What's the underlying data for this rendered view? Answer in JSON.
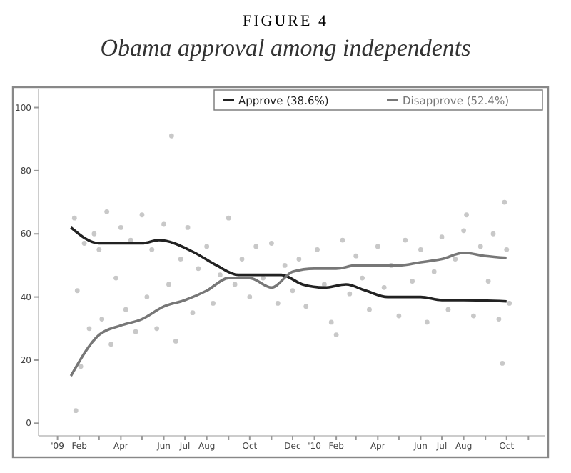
{
  "chart_data": {
    "type": "line",
    "title": "FIGURE 4",
    "subtitle": "Obama approval among independents",
    "xlim": [
      "2008-12-05",
      "2010-11-25"
    ],
    "xticks": [
      {
        "value": "2009-01-01",
        "label": "'09"
      },
      {
        "value": "2009-02-01",
        "label": "Feb"
      },
      {
        "value": "2009-03-01",
        "label": null
      },
      {
        "value": "2009-04-01",
        "label": "Apr"
      },
      {
        "value": "2009-05-01",
        "label": null
      },
      {
        "value": "2009-06-01",
        "label": "Jun"
      },
      {
        "value": "2009-07-01",
        "label": "Jul"
      },
      {
        "value": "2009-08-01",
        "label": "Aug"
      },
      {
        "value": "2009-09-01",
        "label": null
      },
      {
        "value": "2009-10-01",
        "label": "Oct"
      },
      {
        "value": "2009-11-01",
        "label": null
      },
      {
        "value": "2009-12-01",
        "label": "Dec"
      },
      {
        "value": "2010-01-01",
        "label": "'10"
      },
      {
        "value": "2010-02-01",
        "label": "Feb"
      },
      {
        "value": "2010-03-01",
        "label": null
      },
      {
        "value": "2010-04-01",
        "label": "Apr"
      },
      {
        "value": "2010-05-01",
        "label": null
      },
      {
        "value": "2010-06-01",
        "label": "Jun"
      },
      {
        "value": "2010-07-01",
        "label": "Jul"
      },
      {
        "value": "2010-08-01",
        "label": "Aug"
      },
      {
        "value": "2010-09-01",
        "label": null
      },
      {
        "value": "2010-10-01",
        "label": "Oct"
      },
      {
        "value": "2010-11-01",
        "label": null
      }
    ],
    "ylim": [
      -4,
      106
    ],
    "yticks": [
      0,
      20,
      40,
      60,
      80,
      100
    ],
    "grid": false,
    "legend": "top right",
    "series": [
      {
        "type": "scatter",
        "marker": "circle",
        "color": "#c8c8c8",
        "x": [
          "2009-01-25",
          "2009-01-27",
          "2009-01-29",
          "2009-02-03",
          "2009-02-08",
          "2009-02-15",
          "2009-02-22",
          "2009-03-01",
          "2009-03-05",
          "2009-03-12",
          "2009-03-18",
          "2009-03-25",
          "2009-04-01",
          "2009-04-08",
          "2009-04-15",
          "2009-04-22",
          "2009-05-01",
          "2009-05-08",
          "2009-05-15",
          "2009-05-22",
          "2009-06-01",
          "2009-06-08",
          "2009-06-12",
          "2009-06-18",
          "2009-06-25",
          "2009-07-05",
          "2009-07-12",
          "2009-07-20",
          "2009-08-01",
          "2009-08-10",
          "2009-08-20",
          "2009-09-01",
          "2009-09-10",
          "2009-09-20",
          "2009-10-01",
          "2009-10-10",
          "2009-10-20",
          "2009-11-01",
          "2009-11-10",
          "2009-11-20",
          "2009-12-01",
          "2009-12-10",
          "2009-12-20",
          "2010-01-05",
          "2010-01-15",
          "2010-01-25",
          "2010-02-01",
          "2010-02-10",
          "2010-02-20",
          "2010-03-01",
          "2010-03-10",
          "2010-03-20",
          "2010-04-01",
          "2010-04-10",
          "2010-04-20",
          "2010-05-01",
          "2010-05-10",
          "2010-05-20",
          "2010-06-01",
          "2010-06-10",
          "2010-06-20",
          "2010-07-01",
          "2010-07-10",
          "2010-07-20",
          "2010-08-01",
          "2010-08-05",
          "2010-08-15",
          "2010-08-25",
          "2010-09-05",
          "2010-09-12",
          "2010-09-20",
          "2010-09-25",
          "2010-09-28",
          "2010-10-01",
          "2010-10-05"
        ],
        "values": [
          65,
          4,
          42,
          18,
          57,
          30,
          60,
          55,
          33,
          67,
          25,
          46,
          62,
          36,
          58,
          29,
          66,
          40,
          55,
          30,
          63,
          44,
          91,
          26,
          52,
          62,
          35,
          49,
          56,
          38,
          47,
          65,
          44,
          52,
          40,
          56,
          46,
          57,
          38,
          50,
          42,
          52,
          37,
          55,
          44,
          32,
          28,
          58,
          41,
          53,
          46,
          36,
          56,
          43,
          50,
          34,
          58,
          45,
          55,
          32,
          48,
          59,
          36,
          52,
          61,
          66,
          34,
          56,
          45,
          60,
          33,
          19,
          70,
          55,
          38
        ]
      },
      {
        "type": "line",
        "name": "Approve (38.6%)",
        "color": "#222222",
        "marker": "none",
        "x": [
          "2009-01-20",
          "2009-03-01",
          "2009-04-01",
          "2009-05-01",
          "2009-05-25",
          "2009-07-15",
          "2009-08-15",
          "2009-09-15",
          "2009-10-15",
          "2009-11-15",
          "2009-12-15",
          "2010-01-15",
          "2010-02-15",
          "2010-03-15",
          "2010-04-15",
          "2010-06-01",
          "2010-07-01",
          "2010-08-01",
          "2010-10-01"
        ],
        "values": [
          62,
          57,
          57,
          57,
          58,
          54,
          50,
          47,
          47,
          47,
          44,
          43,
          44,
          42,
          40,
          40,
          39,
          39,
          38.6
        ]
      },
      {
        "type": "line",
        "name": "Disapprove (52.4%)",
        "color": "#777777",
        "marker": "none",
        "x": [
          "2009-01-20",
          "2009-03-01",
          "2009-04-01",
          "2009-05-01",
          "2009-06-01",
          "2009-07-01",
          "2009-08-01",
          "2009-09-01",
          "2009-10-01",
          "2009-11-01",
          "2009-12-01",
          "2010-01-01",
          "2010-02-01",
          "2010-03-01",
          "2010-04-01",
          "2010-05-01",
          "2010-06-01",
          "2010-07-01",
          "2010-08-01",
          "2010-09-01",
          "2010-10-01"
        ],
        "values": [
          15,
          28,
          31,
          33,
          37,
          39,
          42,
          46,
          46,
          43,
          48,
          49,
          49,
          50,
          50,
          50,
          51,
          52,
          54,
          53,
          52.4
        ]
      }
    ]
  }
}
